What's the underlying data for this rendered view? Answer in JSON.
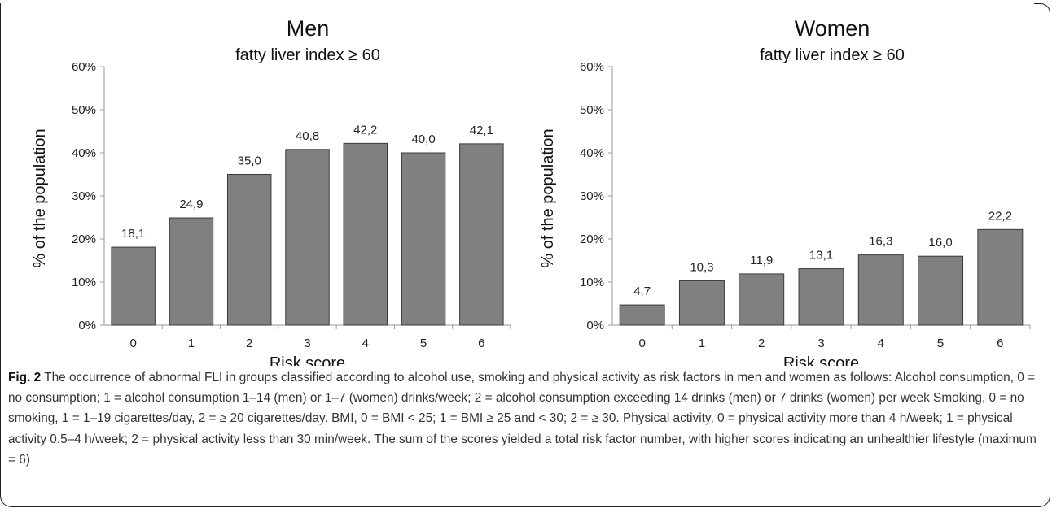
{
  "chart_data": [
    {
      "type": "bar",
      "title": "Men",
      "subtitle": "fatty liver index ≥ 60",
      "xlabel": "Risk score",
      "ylabel": "% of the population",
      "categories": [
        "0",
        "1",
        "2",
        "3",
        "4",
        "5",
        "6"
      ],
      "values": [
        18.1,
        24.9,
        35.0,
        40.8,
        42.2,
        40.0,
        42.1
      ],
      "data_labels": [
        "18,1",
        "24,9",
        "35,0",
        "40,8",
        "42,2",
        "40,0",
        "42,1"
      ],
      "ylim": [
        0,
        60
      ],
      "yticks": [
        "0%",
        "10%",
        "20%",
        "30%",
        "40%",
        "50%",
        "60%"
      ],
      "grid": false,
      "bar_color": "#808080"
    },
    {
      "type": "bar",
      "title": "Women",
      "subtitle": "fatty liver index ≥ 60",
      "xlabel": "Risk score",
      "ylabel": "% of the population",
      "categories": [
        "0",
        "1",
        "2",
        "3",
        "4",
        "5",
        "6"
      ],
      "values": [
        4.7,
        10.3,
        11.9,
        13.1,
        16.3,
        16.0,
        22.2
      ],
      "data_labels": [
        "4,7",
        "10,3",
        "11,9",
        "13,1",
        "16,3",
        "16,0",
        "22,2"
      ],
      "ylim": [
        0,
        60
      ],
      "yticks": [
        "0%",
        "10%",
        "20%",
        "30%",
        "40%",
        "50%",
        "60%"
      ],
      "grid": false,
      "bar_color": "#808080"
    }
  ],
  "caption": {
    "label": "Fig. 2",
    "text": " The occurrence of abnormal FLI in groups classified according to alcohol use, smoking and physical activity as risk factors in men and women as follows: Alcohol consumption, 0 = no consumption; 1 = alcohol consumption 1–14 (men) or 1–7 (women) drinks/week; 2 = alcohol consumption exceeding 14 drinks (men) or 7 drinks (women) per week Smoking, 0 = no smoking, 1 = 1–19 cigarettes/day, 2 = ≥ 20 cigarettes/day. BMI, 0 = BMI < 25; 1 = BMI ≥ 25 and < 30; 2 = ≥ 30. Physical activity, 0 = physical activity more than 4 h/week; 1 = physical activity 0.5–4 h/week; 2 = physical activity less than 30 min/week. The sum of the scores yielded a total risk factor number, with higher scores indicating an unhealthier lifestyle (maximum = 6)"
  }
}
